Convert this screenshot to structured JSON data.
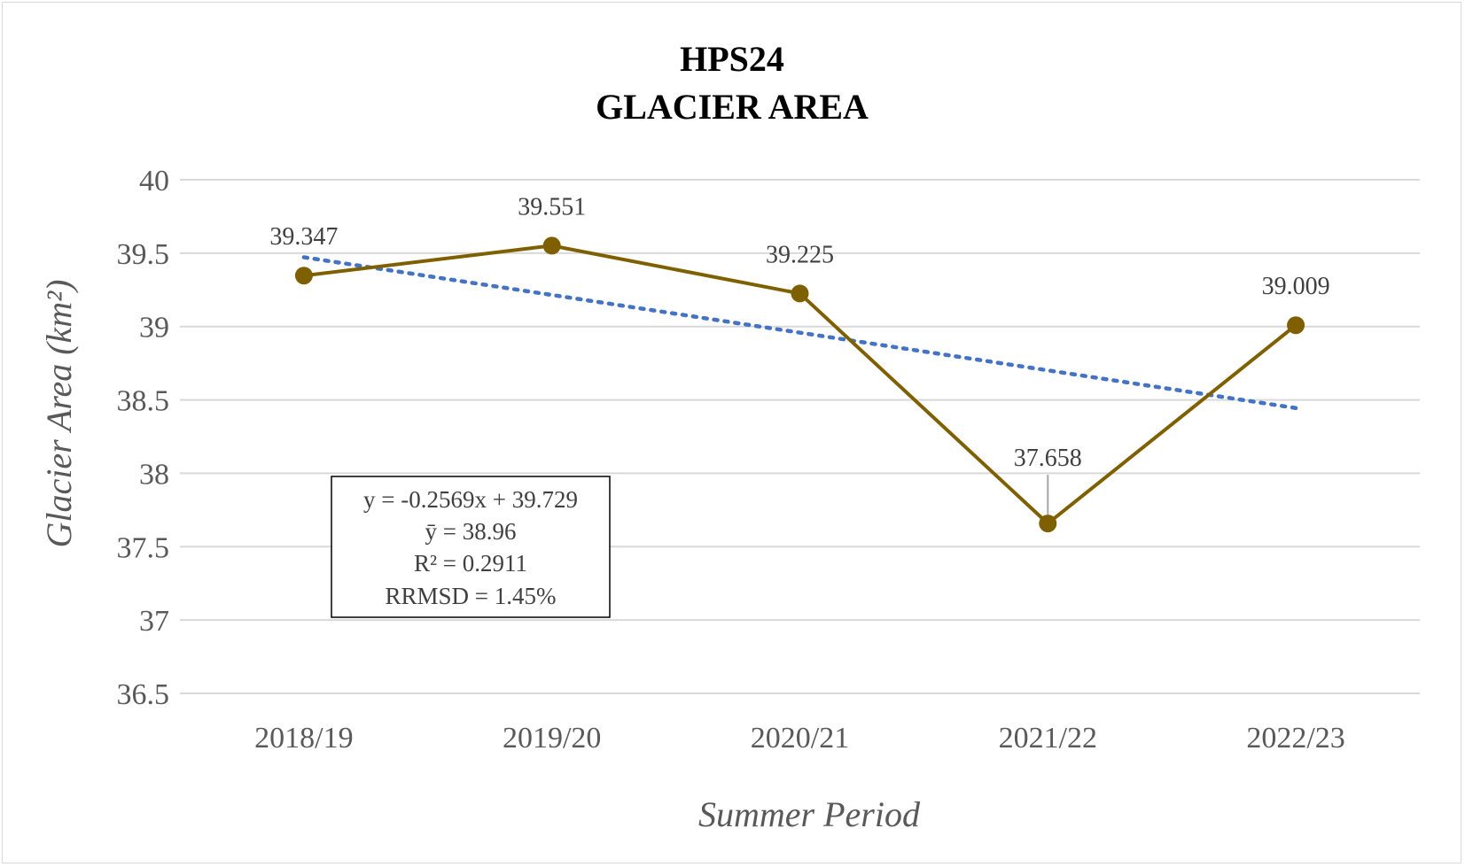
{
  "chart_data": {
    "type": "line",
    "title_line1": "HPS24",
    "title_line2": "GLACIER AREA",
    "xlabel": "Summer Period",
    "ylabel": "Glacier Area (km²)",
    "categories": [
      "2018/19",
      "2019/20",
      "2020/21",
      "2021/22",
      "2022/23"
    ],
    "series": [
      {
        "values": [
          39.347,
          39.551,
          39.225,
          37.658,
          39.009
        ],
        "color": "#7f6000"
      }
    ],
    "data_labels": [
      "39.347",
      "39.551",
      "39.225",
      "37.658",
      "39.009"
    ],
    "trendline": {
      "type": "linear",
      "slope": -0.2569,
      "intercept": 39.729,
      "color": "#4472c4",
      "style": "dotted"
    },
    "ylim": [
      36.5,
      40
    ],
    "yticks": [
      "36.5",
      "37",
      "37.5",
      "38",
      "38.5",
      "39",
      "39.5",
      "40"
    ],
    "grid": true,
    "stats_box": [
      "y = -0.2569x + 39.729",
      "ȳ = 38.96",
      "R² = 0.2911",
      "RRMSD = 1.45%"
    ]
  }
}
